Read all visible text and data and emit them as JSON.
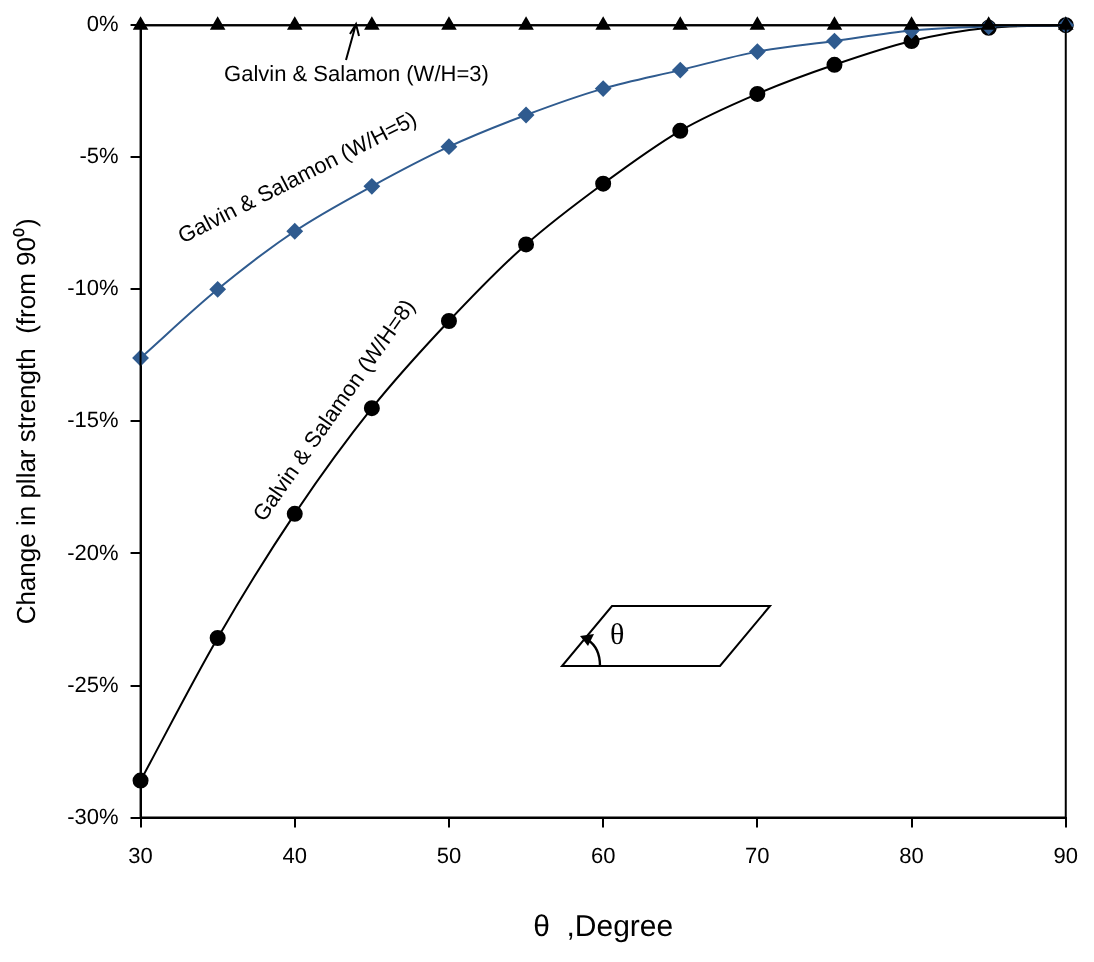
{
  "chart_data": {
    "type": "line",
    "xlabel": "θ  ,Degree",
    "ylabel": "Change in pllar strength  (from 90⁰)",
    "x": [
      30,
      35,
      40,
      45,
      50,
      55,
      60,
      65,
      70,
      75,
      80,
      85,
      90
    ],
    "series": [
      {
        "name": "Galvin & Salamon (W/H=3)",
        "color": "#000000",
        "marker": "triangle",
        "values": [
          0,
          0,
          0,
          0,
          0,
          0,
          0,
          0,
          0,
          0,
          0,
          0,
          0
        ]
      },
      {
        "name": "Galvin & Salamon (W/H=5)",
        "color": "#2f5b8f",
        "marker": "diamond",
        "values": [
          -12.6,
          -10.0,
          -7.8,
          -6.1,
          -4.6,
          -3.4,
          -2.4,
          -1.7,
          -1.0,
          -0.6,
          -0.2,
          -0.05,
          0
        ]
      },
      {
        "name": "Galvin & Salamon (W/H=8)",
        "color": "#000000",
        "marker": "circle",
        "values": [
          -28.6,
          -23.2,
          -18.5,
          -14.5,
          -11.2,
          -8.3,
          -6.0,
          -4.0,
          -2.6,
          -1.5,
          -0.6,
          -0.1,
          0
        ]
      }
    ],
    "xlim": [
      30,
      90
    ],
    "xticks": [
      30,
      40,
      50,
      60,
      70,
      80,
      90
    ],
    "ylim": [
      -30,
      0
    ],
    "yticks": [
      {
        "value": -30,
        "label": "-30%"
      },
      {
        "value": -25,
        "label": "-25%"
      },
      {
        "value": -20,
        "label": "-20%"
      },
      {
        "value": -15,
        "label": "-15%"
      },
      {
        "value": -10,
        "label": "-10%"
      },
      {
        "value": -5,
        "label": "-5%"
      },
      {
        "value": 0,
        "label": "0%"
      }
    ],
    "annotations": [
      "θ"
    ],
    "grid": false,
    "line_style": "solid"
  }
}
